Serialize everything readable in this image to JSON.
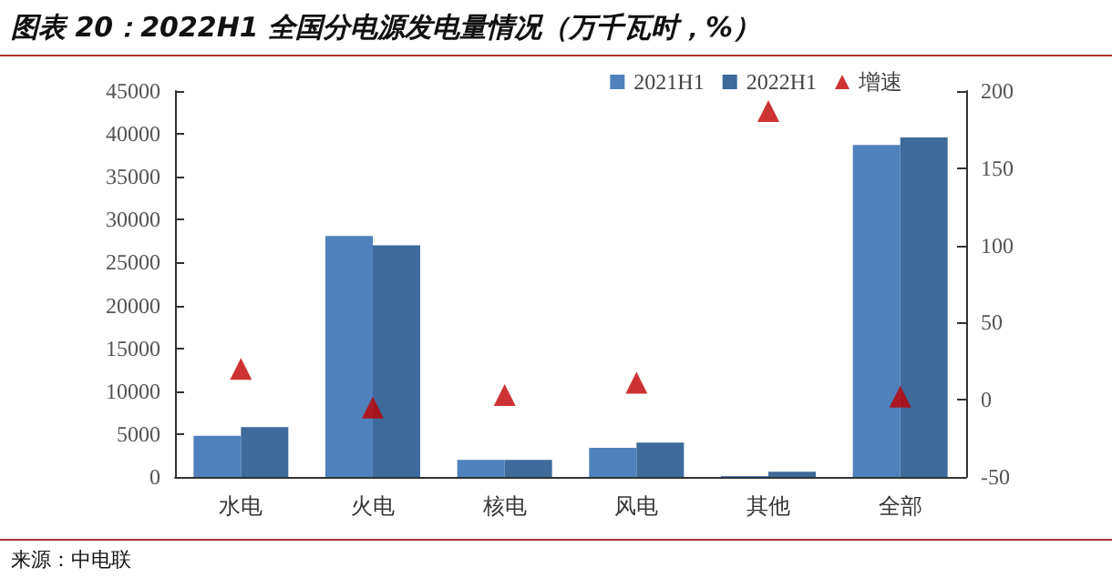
{
  "chart_data": {
    "type": "bar",
    "title": "图表 20：2022H1 全国分电源发电量情况（万千瓦时，%）",
    "categories": [
      "水电",
      "火电",
      "核电",
      "风电",
      "其他",
      "全部"
    ],
    "series": [
      {
        "name": "2021H1",
        "color": "#4f81bd",
        "values": [
          4800,
          28100,
          2000,
          3400,
          100,
          38700
        ]
      },
      {
        "name": "2022H1",
        "color": "#3e6a9c",
        "values": [
          5800,
          27000,
          2000,
          4000,
          600,
          39600
        ]
      },
      {
        "name": "增速",
        "type": "scatter",
        "axis": "y2",
        "color": "#c00000",
        "marker": "triangle",
        "values": [
          20,
          -5,
          3,
          11,
          187,
          2
        ]
      }
    ],
    "ylim": [
      0,
      45000
    ],
    "yticks": [
      0,
      5000,
      10000,
      15000,
      20000,
      25000,
      30000,
      35000,
      40000,
      45000
    ],
    "y2lim": [
      -50,
      200
    ],
    "y2ticks": [
      -50,
      0,
      50,
      100,
      150,
      200
    ],
    "grid": false,
    "legend": "top right",
    "annotations": [
      "来源：中电联"
    ]
  }
}
